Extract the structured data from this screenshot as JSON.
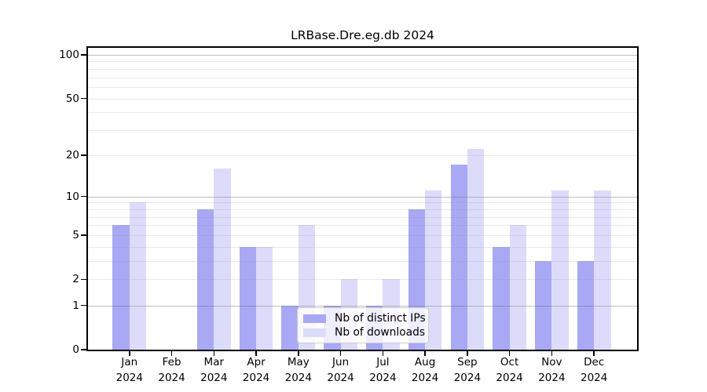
{
  "chart_data": {
    "type": "bar",
    "title": "LRBase.Dre.eg.db 2024",
    "categories": [
      "Jan",
      "Feb",
      "Mar",
      "Apr",
      "May",
      "Jun",
      "Jul",
      "Aug",
      "Sep",
      "Oct",
      "Nov",
      "Dec"
    ],
    "x_tick_year_line": "2024",
    "series": [
      {
        "name": "Nb of distinct IPs",
        "color": "#a8a8f5",
        "values": [
          6,
          0,
          8,
          4,
          1,
          1,
          1,
          8,
          17,
          4,
          3,
          3
        ]
      },
      {
        "name": "Nb of downloads",
        "color": "#dcdcfa",
        "values": [
          9,
          0,
          16,
          4,
          6,
          2,
          2,
          11,
          22,
          6,
          11,
          11
        ]
      }
    ],
    "xlabel": "",
    "ylabel": "",
    "ylim": [
      0,
      100
    ],
    "yscale": "log1p",
    "y_ticks": [
      100,
      50,
      20,
      10,
      5,
      2,
      1,
      0
    ],
    "y_tick_labels": [
      "100",
      "50",
      "20",
      "10",
      "5",
      "2",
      "1",
      "0"
    ],
    "y_major_gridlines": [
      1,
      10,
      100
    ],
    "y_minor_gridlines": [
      2,
      3,
      4,
      5,
      6,
      7,
      8,
      9,
      20,
      30,
      40,
      50,
      60,
      70,
      80,
      90
    ],
    "grid": true,
    "legend_position": "lower center inside",
    "colors": {
      "axis": "#000000",
      "background": "#ffffff",
      "major_grid": "#c4c4c4",
      "minor_grid": "#e8e8e8"
    }
  }
}
